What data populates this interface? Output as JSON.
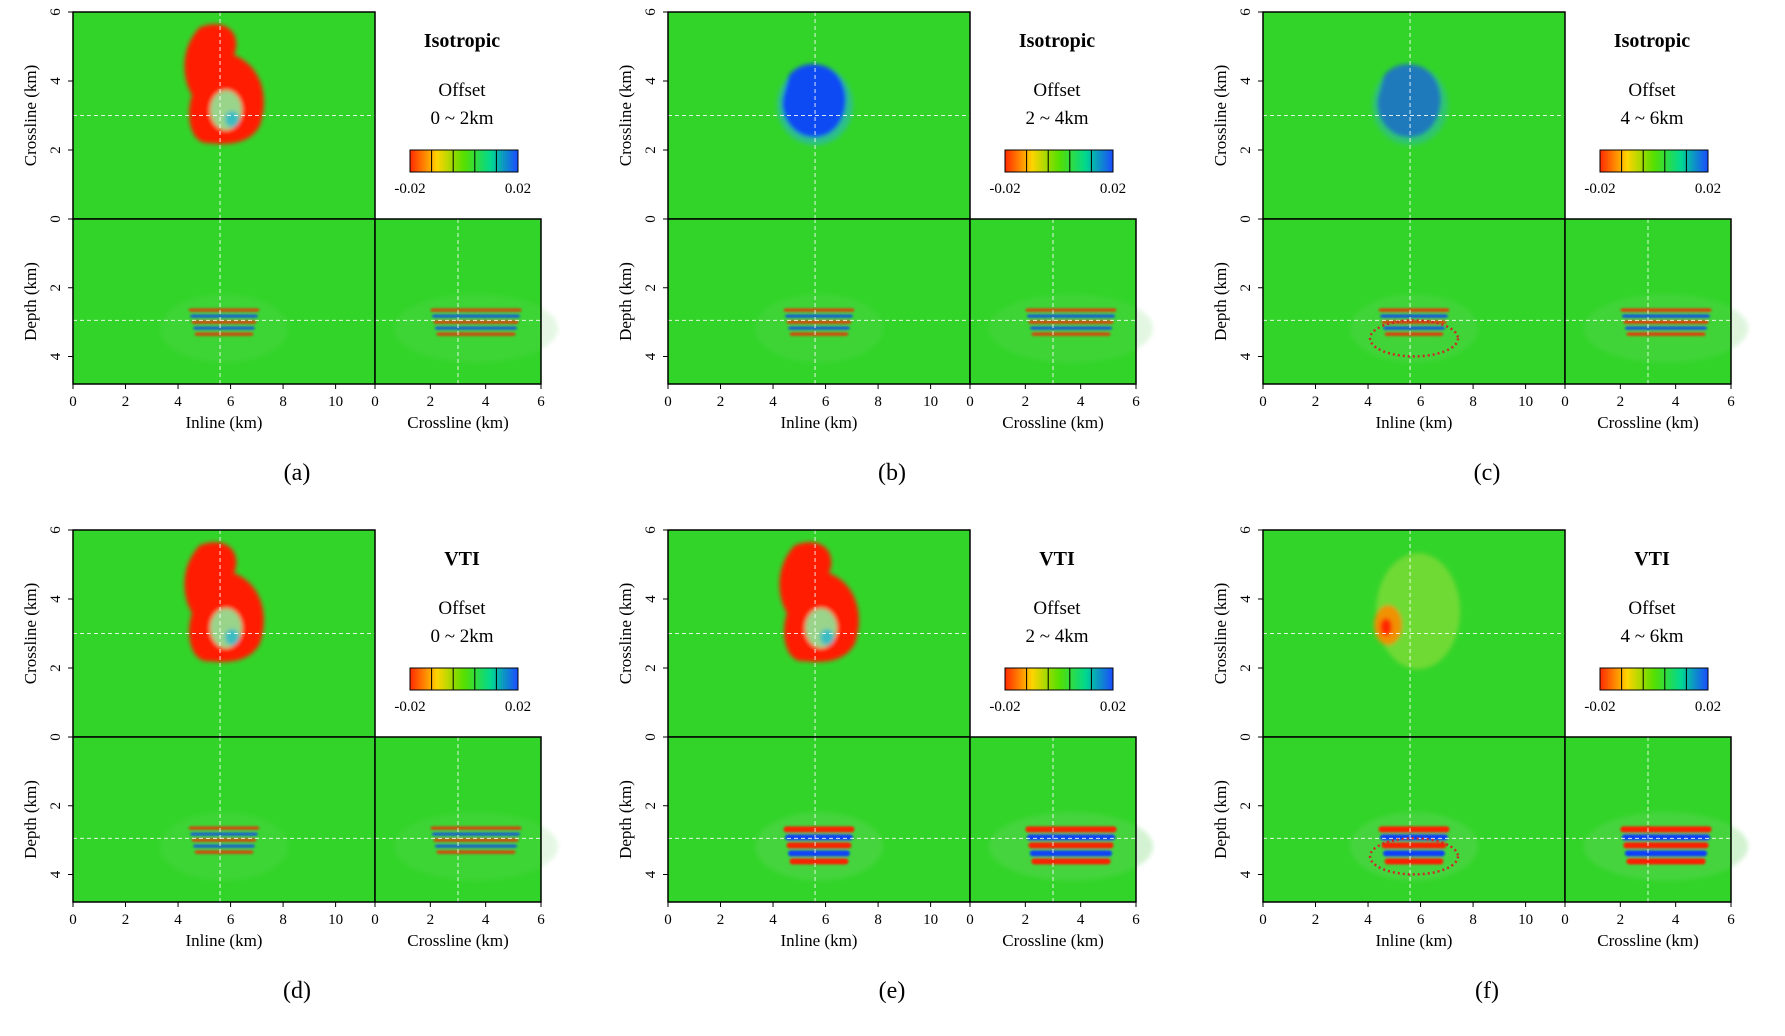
{
  "colorbar": {
    "min_label": "-0.02",
    "max_label": "0.02",
    "colors": [
      "#ff2a00",
      "#ffd400",
      "#55e000",
      "#00d890",
      "#1a4cff"
    ]
  },
  "axes": {
    "plan_ylabel": "Crossline (km)",
    "section_ylabel": "Depth (km)",
    "inline_xlabel": "Inline (km)",
    "crossline_xlabel": "Crossline (km)",
    "plan_yticks": [
      "0",
      "2",
      "4",
      "6"
    ],
    "depth_yticks": [
      "2",
      "4"
    ],
    "inline_xticks": [
      "0",
      "2",
      "4",
      "6",
      "8",
      "10"
    ],
    "crossline_xticks": [
      "0",
      "2",
      "4",
      "6"
    ]
  },
  "colors": {
    "background": "#33d42a",
    "red": "#ff1e00",
    "blue": "#0f3cff",
    "highlight": "#cc2a2a"
  },
  "panels": [
    {
      "id": "a",
      "caption": "(a)",
      "title": "Isotropic",
      "offset_label": "Offset",
      "offset_range": "0 ~ 2km",
      "plan_anomaly": "red",
      "plan_strength": 1.0,
      "section_strength": 0.5,
      "highlight": false
    },
    {
      "id": "b",
      "caption": "(b)",
      "title": "Isotropic",
      "offset_label": "Offset",
      "offset_range": "2 ~ 4km",
      "plan_anomaly": "blue",
      "plan_strength": 0.9,
      "section_strength": 0.55,
      "highlight": false
    },
    {
      "id": "c",
      "caption": "(c)",
      "title": "Isotropic",
      "offset_label": "Offset",
      "offset_range": "4 ~ 6km",
      "plan_anomaly": "blue",
      "plan_strength": 0.55,
      "section_strength": 0.65,
      "highlight": true
    },
    {
      "id": "d",
      "caption": "(d)",
      "title": "VTI",
      "offset_label": "Offset",
      "offset_range": "0 ~ 2km",
      "plan_anomaly": "red",
      "plan_strength": 1.0,
      "section_strength": 0.5,
      "highlight": false
    },
    {
      "id": "e",
      "caption": "(e)",
      "title": "VTI",
      "offset_label": "Offset",
      "offset_range": "2 ~ 4km",
      "plan_anomaly": "red",
      "plan_strength": 1.0,
      "section_strength": 0.85,
      "highlight": false
    },
    {
      "id": "f",
      "caption": "(f)",
      "title": "VTI",
      "offset_label": "Offset",
      "offset_range": "4 ~ 6km",
      "plan_anomaly": "weak",
      "plan_strength": 0.5,
      "section_strength": 0.9,
      "highlight": true
    }
  ]
}
